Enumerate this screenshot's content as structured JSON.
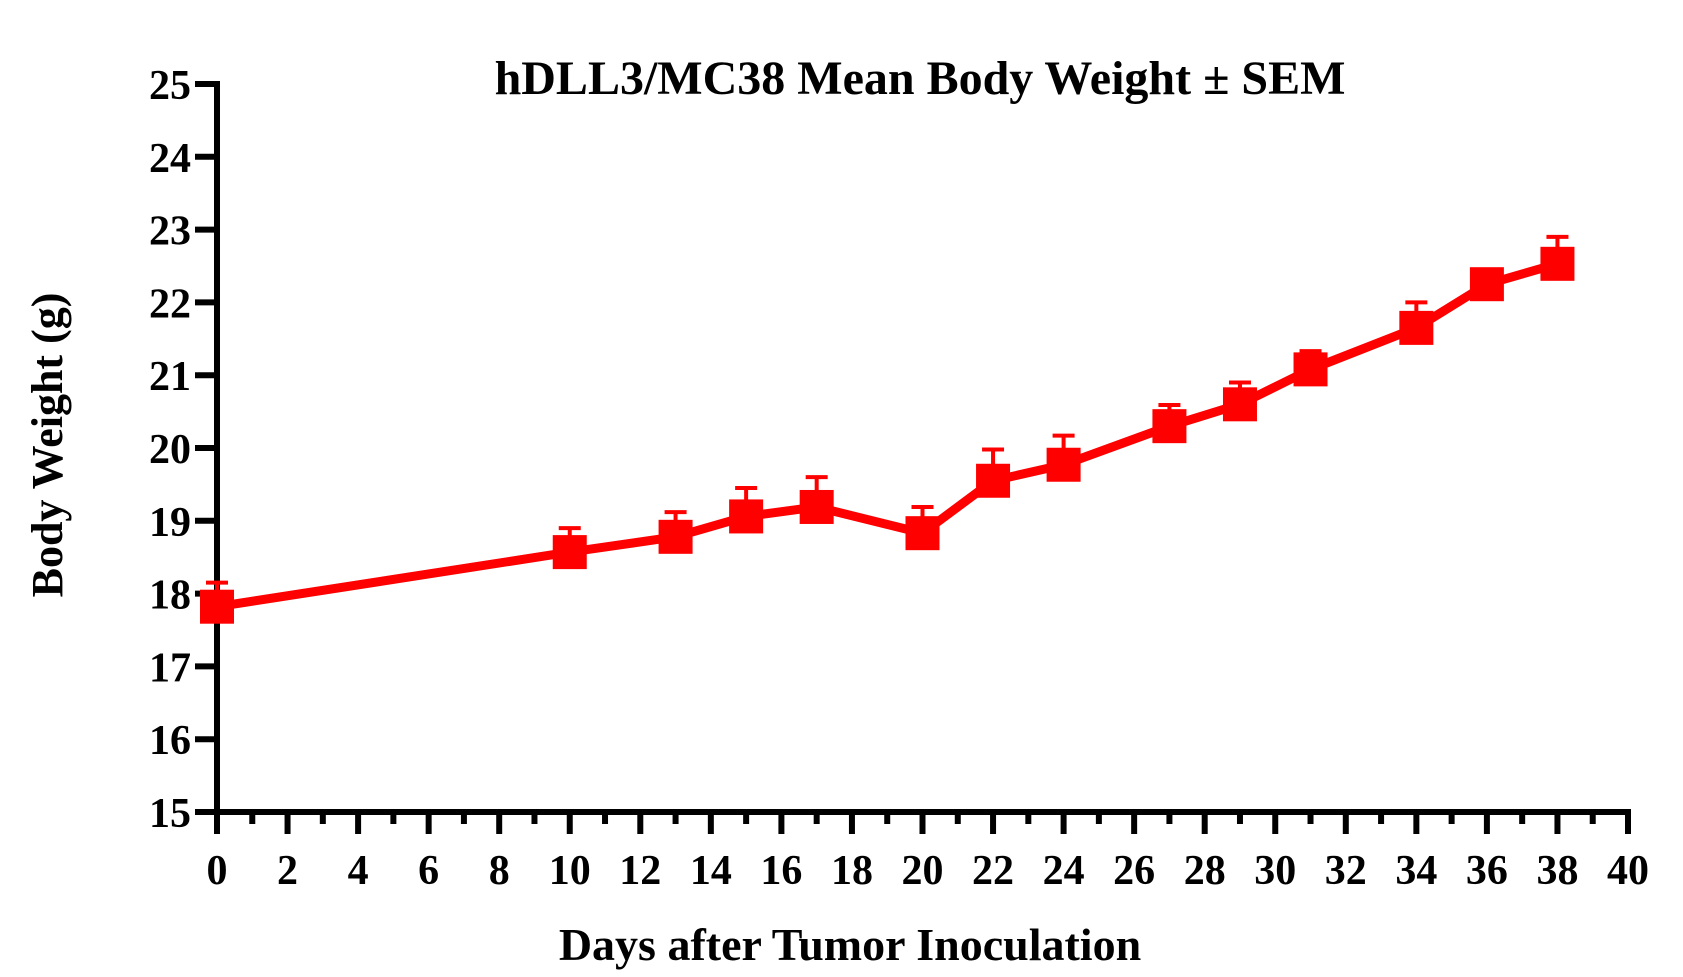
{
  "chart_data": {
    "type": "line",
    "title": "hDLL3/MC38 Mean Body Weight ± SEM",
    "xlabel": "Days after Tumor Inoculation",
    "ylabel": "Body Weight (g)",
    "xlim": [
      0,
      40
    ],
    "ylim": [
      15,
      25
    ],
    "xticks": [
      "0",
      "2",
      "4",
      "6",
      "8",
      "10",
      "12",
      "14",
      "16",
      "18",
      "20",
      "22",
      "24",
      "26",
      "28",
      "30",
      "32",
      "34",
      "36",
      "38",
      "40"
    ],
    "yticks": [
      "15",
      "16",
      "17",
      "18",
      "19",
      "20",
      "21",
      "22",
      "23",
      "24",
      "25"
    ],
    "grid": false,
    "series": [
      {
        "color": "#ff0000",
        "marker": "square",
        "x": [
          0,
          10,
          13,
          15,
          17,
          20,
          22,
          24,
          27,
          29,
          31,
          34,
          36,
          38
        ],
        "y": [
          17.82,
          18.57,
          18.78,
          19.06,
          19.19,
          18.83,
          19.55,
          19.77,
          20.3,
          20.6,
          21.08,
          21.65,
          22.25,
          22.53
        ],
        "sem": [
          0.33,
          0.33,
          0.34,
          0.39,
          0.41,
          0.36,
          0.43,
          0.4,
          0.29,
          0.3,
          0.25,
          0.35,
          0.1,
          0.37
        ]
      }
    ]
  }
}
